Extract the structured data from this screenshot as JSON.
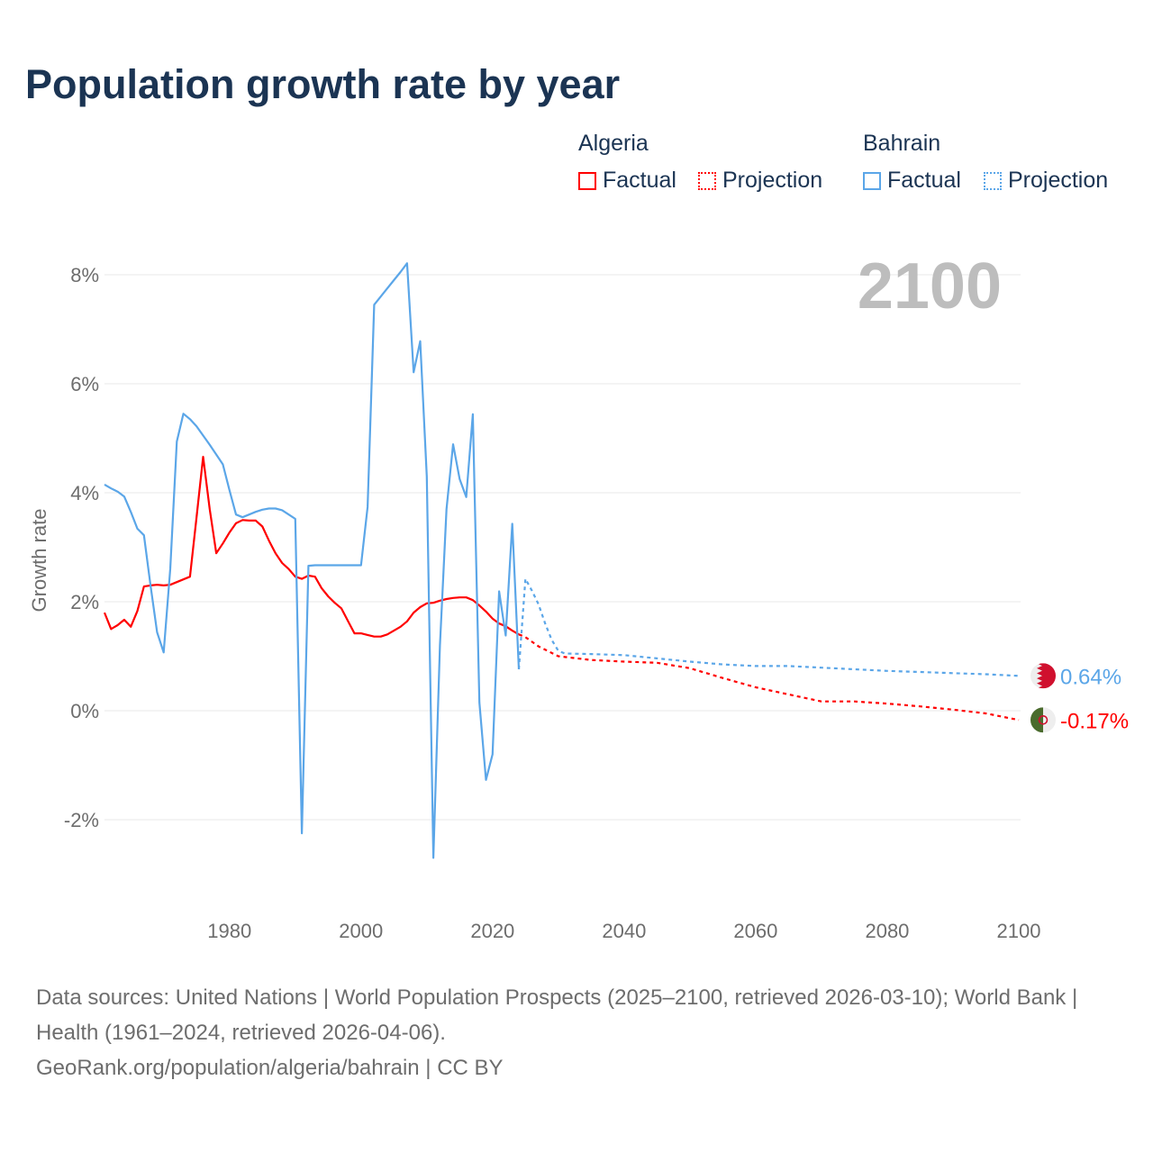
{
  "title": "Population growth rate by year",
  "legend": {
    "groups": [
      {
        "name": "Algeria",
        "color": "#ff0000",
        "factual": "Factual",
        "projection": "Projection"
      },
      {
        "name": "Bahrain",
        "color": "#5ba6e8",
        "factual": "Factual",
        "projection": "Projection"
      }
    ]
  },
  "year_label": "2100",
  "footer": {
    "sources": "Data sources: United Nations | World Population Prospects (2025–2100, retrieved 2026-03-10); World Bank | Health (1961–2024, retrieved 2026-04-06).",
    "credit": "GeoRank.org/population/algeria/bahrain | CC BY"
  },
  "chart_data": {
    "type": "line",
    "title": "Population growth rate by year",
    "xlabel": "",
    "ylabel": "Growth rate",
    "xlim": [
      1961,
      2100
    ],
    "ylim": [
      -3,
      9
    ],
    "grid": true,
    "x_ticks": [
      {
        "v": 1980,
        "label": "1980"
      },
      {
        "v": 2000,
        "label": "2000"
      },
      {
        "v": 2020,
        "label": "2020"
      },
      {
        "v": 2040,
        "label": "2040"
      },
      {
        "v": 2060,
        "label": "2060"
      },
      {
        "v": 2080,
        "label": "2080"
      },
      {
        "v": 2100,
        "label": "2100"
      }
    ],
    "y_ticks": [
      {
        "v": 8,
        "label": "8%"
      },
      {
        "v": 6,
        "label": "6%"
      },
      {
        "v": 4,
        "label": "4%"
      },
      {
        "v": 2,
        "label": "2%"
      },
      {
        "v": 0,
        "label": "0%"
      },
      {
        "v": -2,
        "label": "-2%"
      }
    ],
    "legend_position": "top-right",
    "series": [
      {
        "name": "Algeria Factual",
        "color": "#ff0000",
        "dashed": false,
        "x": [
          1961,
          1962,
          1963,
          1964,
          1965,
          1966,
          1967,
          1968,
          1969,
          1970,
          1971,
          1972,
          1973,
          1974,
          1975,
          1976,
          1977,
          1978,
          1979,
          1980,
          1981,
          1982,
          1983,
          1984,
          1985,
          1986,
          1987,
          1988,
          1989,
          1990,
          1991,
          1992,
          1993,
          1994,
          1995,
          1996,
          1997,
          1998,
          1999,
          2000,
          2001,
          2002,
          2003,
          2004,
          2005,
          2006,
          2007,
          2008,
          2009,
          2010,
          2011,
          2012,
          2013,
          2014,
          2015,
          2016,
          2017,
          2018,
          2019,
          2020,
          2021,
          2022,
          2023,
          2024
        ],
        "y": [
          1.8,
          1.5,
          1.57,
          1.67,
          1.54,
          1.83,
          2.28,
          2.3,
          2.31,
          2.3,
          2.31,
          2.36,
          2.41,
          2.46,
          3.55,
          4.66,
          3.7,
          2.89,
          3.07,
          3.27,
          3.44,
          3.5,
          3.49,
          3.49,
          3.38,
          3.12,
          2.89,
          2.71,
          2.6,
          2.46,
          2.42,
          2.48,
          2.46,
          2.25,
          2.1,
          1.98,
          1.88,
          1.65,
          1.42,
          1.42,
          1.39,
          1.36,
          1.36,
          1.4,
          1.47,
          1.54,
          1.64,
          1.8,
          1.9,
          1.97,
          1.98,
          2.02,
          2.05,
          2.07,
          2.08,
          2.08,
          2.03,
          1.93,
          1.82,
          1.69,
          1.6,
          1.55,
          1.47,
          1.4
        ]
      },
      {
        "name": "Algeria Projection",
        "color": "#ff0000",
        "dashed": true,
        "x": [
          2024,
          2025,
          2027,
          2030,
          2035,
          2040,
          2045,
          2050,
          2055,
          2060,
          2065,
          2070,
          2072,
          2075,
          2080,
          2085,
          2090,
          2095,
          2100
        ],
        "y": [
          1.4,
          1.35,
          1.18,
          1.0,
          0.93,
          0.9,
          0.88,
          0.78,
          0.6,
          0.43,
          0.3,
          0.17,
          0.17,
          0.17,
          0.13,
          0.08,
          0.02,
          -0.05,
          -0.17
        ],
        "end_label": "-0.17%"
      },
      {
        "name": "Bahrain Factual",
        "color": "#5ba6e8",
        "dashed": false,
        "x": [
          1961,
          1962,
          1963,
          1964,
          1965,
          1966,
          1967,
          1968,
          1969,
          1970,
          1971,
          1972,
          1973,
          1974,
          1975,
          1976,
          1977,
          1978,
          1979,
          1980,
          1981,
          1982,
          1983,
          1984,
          1985,
          1986,
          1987,
          1988,
          1989,
          1990,
          1991,
          1992,
          1993,
          1994,
          1995,
          1996,
          1997,
          1998,
          1999,
          2000,
          2001,
          2002,
          2003,
          2004,
          2005,
          2006,
          2007,
          2008,
          2009,
          2010,
          2011,
          2012,
          2013,
          2014,
          2015,
          2016,
          2017,
          2018,
          2019,
          2020,
          2021,
          2022,
          2023,
          2024
        ],
        "y": [
          4.15,
          4.08,
          4.02,
          3.93,
          3.65,
          3.34,
          3.22,
          2.3,
          1.44,
          1.07,
          2.6,
          4.94,
          5.45,
          5.35,
          5.22,
          5.05,
          4.88,
          4.7,
          4.52,
          4.05,
          3.6,
          3.55,
          3.6,
          3.65,
          3.69,
          3.71,
          3.71,
          3.68,
          3.6,
          3.52,
          -2.25,
          2.66,
          2.67,
          2.67,
          2.67,
          2.67,
          2.67,
          2.67,
          2.67,
          2.67,
          3.74,
          7.45,
          7.6,
          7.75,
          7.9,
          8.05,
          8.21,
          6.21,
          6.78,
          4.3,
          -2.7,
          1.2,
          3.7,
          4.89,
          4.25,
          3.92,
          5.44,
          0.15,
          -1.27,
          -0.8,
          2.19,
          1.38,
          3.43,
          0.76
        ]
      },
      {
        "name": "Bahrain Projection",
        "color": "#5ba6e8",
        "dashed": true,
        "x": [
          2024,
          2025,
          2026,
          2027,
          2028,
          2029,
          2030,
          2031,
          2035,
          2040,
          2045,
          2050,
          2055,
          2060,
          2065,
          2070,
          2075,
          2080,
          2085,
          2090,
          2095,
          2100
        ],
        "y": [
          0.76,
          2.42,
          2.2,
          1.95,
          1.6,
          1.3,
          1.1,
          1.05,
          1.04,
          1.02,
          0.96,
          0.9,
          0.85,
          0.82,
          0.82,
          0.79,
          0.76,
          0.73,
          0.71,
          0.69,
          0.67,
          0.64
        ],
        "end_label": "0.64%"
      }
    ]
  }
}
